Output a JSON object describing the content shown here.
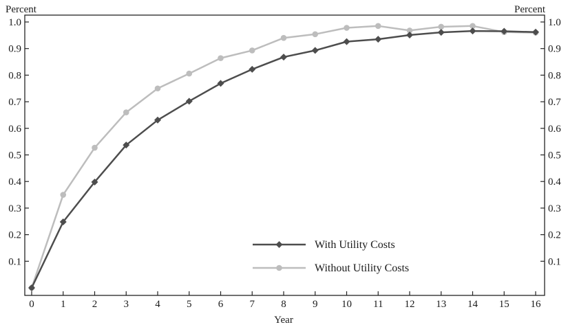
{
  "chart_data": {
    "type": "line",
    "title": "",
    "xlabel": "Year",
    "ylabel_left": "Percent",
    "ylabel_right": "Percent",
    "x": [
      0,
      1,
      2,
      3,
      4,
      5,
      6,
      7,
      8,
      9,
      10,
      11,
      12,
      13,
      14,
      15,
      16
    ],
    "xlim": [
      0,
      16
    ],
    "ylim": [
      0,
      1.0
    ],
    "x_ticks": [
      "0",
      "1",
      "2",
      "3",
      "4",
      "5",
      "6",
      "7",
      "8",
      "9",
      "10",
      "11",
      "12",
      "13",
      "14",
      "15",
      "16"
    ],
    "y_ticks": [
      {
        "value": 0.1,
        "label": "0.1"
      },
      {
        "value": 0.2,
        "label": "0.2"
      },
      {
        "value": 0.3,
        "label": "0.3"
      },
      {
        "value": 0.4,
        "label": "0.4"
      },
      {
        "value": 0.5,
        "label": "0.5"
      },
      {
        "value": 0.6,
        "label": "0.6"
      },
      {
        "value": 0.7,
        "label": "0.7"
      },
      {
        "value": 0.8,
        "label": "0.8"
      },
      {
        "value": 0.9,
        "label": "0.9"
      },
      {
        "value": 1.0,
        "label": "1.0"
      }
    ],
    "grid": false,
    "legend_position": "bottom-center",
    "series": [
      {
        "name": "With Utility Costs",
        "color": "#4d4d4d",
        "marker": "diamond",
        "values": [
          0.0,
          0.248,
          0.398,
          0.537,
          0.631,
          0.702,
          0.769,
          0.822,
          0.868,
          0.893,
          0.926,
          0.935,
          0.951,
          0.961,
          0.966,
          0.965,
          0.962
        ]
      },
      {
        "name": "Without Utility Costs",
        "color": "#bdbdbd",
        "marker": "circle",
        "values": [
          0.0,
          0.35,
          0.527,
          0.66,
          0.75,
          0.806,
          0.864,
          0.893,
          0.94,
          0.954,
          0.978,
          0.985,
          0.968,
          0.982,
          0.985,
          0.962,
          0.96
        ]
      }
    ]
  }
}
